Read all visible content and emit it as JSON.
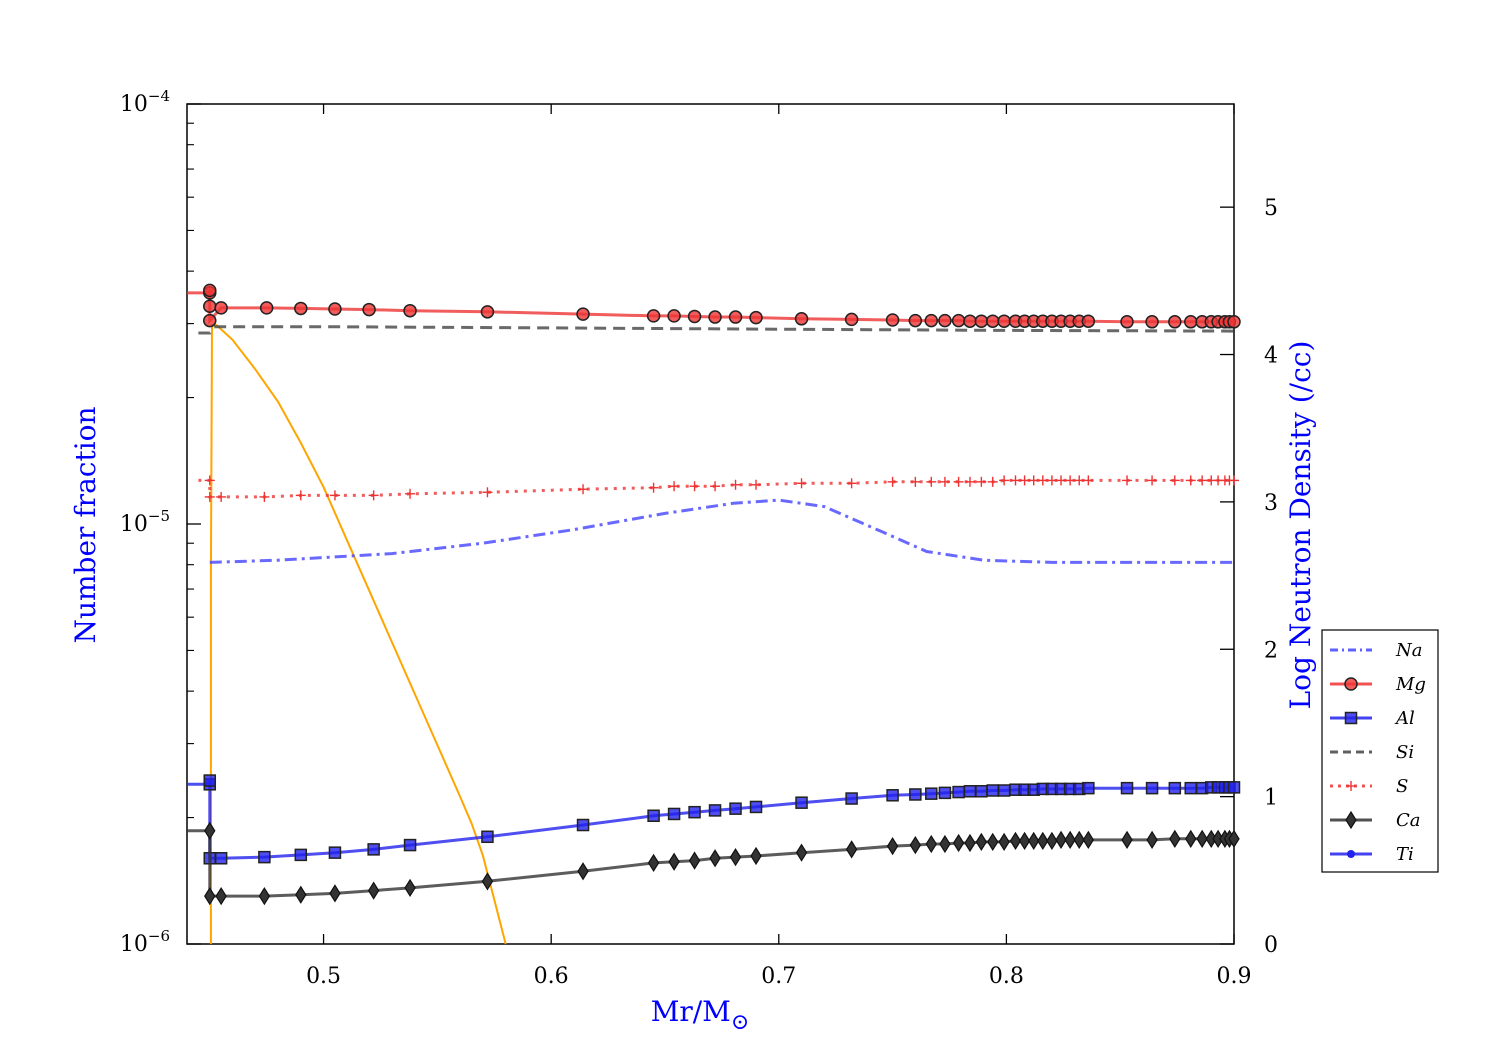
{
  "chart_data": {
    "type": "line",
    "xlabel": "Mr/M",
    "xlabel_symbol": "⊙",
    "ylabel_left": "Number fraction",
    "ylabel_right": "Log Neutron Density (/cc)",
    "x_range": [
      0.44,
      0.9
    ],
    "x_ticks": [
      0.5,
      0.6,
      0.7,
      0.8,
      0.9
    ],
    "x_tick_labels": [
      "0.5",
      "0.6",
      "0.7",
      "0.8",
      "0.9"
    ],
    "y_left_scale": "log",
    "y_left_range": [
      1e-06,
      0.0001
    ],
    "y_left_major_ticks": [
      {
        "value": 1e-06,
        "base": "10",
        "exp": "−6"
      },
      {
        "value": 1e-05,
        "base": "10",
        "exp": "−5"
      },
      {
        "value": 0.0001,
        "base": "10",
        "exp": "−4"
      }
    ],
    "y_right_range": [
      0,
      5.7
    ],
    "y_right_ticks": [
      0,
      1,
      2,
      3,
      4,
      5
    ],
    "y_right_tick_labels": [
      "0",
      "1",
      "2",
      "3",
      "4",
      "5"
    ],
    "legend_position": "right, outside plot (lower)",
    "series": [
      {
        "name": "Na",
        "color": "#4444ff",
        "dash": "dashdot",
        "marker": "none",
        "points": [
          [
            0.45,
            8.1e-06
          ],
          [
            0.48,
            8.2e-06
          ],
          [
            0.53,
            8.5e-06
          ],
          [
            0.57,
            9e-06
          ],
          [
            0.61,
            9.7e-06
          ],
          [
            0.65,
            1.06e-05
          ],
          [
            0.68,
            1.12e-05
          ],
          [
            0.7,
            1.14e-05
          ],
          [
            0.72,
            1.1e-05
          ],
          [
            0.745,
            9.6e-06
          ],
          [
            0.765,
            8.6e-06
          ],
          [
            0.79,
            8.2e-06
          ],
          [
            0.82,
            8.1e-06
          ],
          [
            0.86,
            8.1e-06
          ],
          [
            0.9,
            8.1e-06
          ]
        ]
      },
      {
        "name": "Mg",
        "color": "#ee3333",
        "dash": "solid",
        "marker": "circle",
        "points": [
          [
            0.44,
            3.55e-05
          ],
          [
            0.45,
            3.55e-05
          ],
          [
            0.45,
            3.6e-05
          ],
          [
            0.45,
            3.3e-05
          ],
          [
            0.45,
            3.05e-05
          ],
          [
            0.455,
            3.27e-05
          ],
          [
            0.475,
            3.27e-05
          ],
          [
            0.49,
            3.26e-05
          ],
          [
            0.505,
            3.25e-05
          ],
          [
            0.52,
            3.24e-05
          ],
          [
            0.538,
            3.22e-05
          ],
          [
            0.572,
            3.2e-05
          ],
          [
            0.614,
            3.16e-05
          ],
          [
            0.645,
            3.13e-05
          ],
          [
            0.654,
            3.13e-05
          ],
          [
            0.663,
            3.12e-05
          ],
          [
            0.672,
            3.11e-05
          ],
          [
            0.681,
            3.11e-05
          ],
          [
            0.69,
            3.1e-05
          ],
          [
            0.71,
            3.08e-05
          ],
          [
            0.732,
            3.07e-05
          ],
          [
            0.75,
            3.06e-05
          ],
          [
            0.76,
            3.05e-05
          ],
          [
            0.767,
            3.05e-05
          ],
          [
            0.773,
            3.05e-05
          ],
          [
            0.779,
            3.05e-05
          ],
          [
            0.784,
            3.04e-05
          ],
          [
            0.789,
            3.04e-05
          ],
          [
            0.794,
            3.04e-05
          ],
          [
            0.799,
            3.04e-05
          ],
          [
            0.804,
            3.04e-05
          ],
          [
            0.808,
            3.04e-05
          ],
          [
            0.812,
            3.04e-05
          ],
          [
            0.816,
            3.04e-05
          ],
          [
            0.82,
            3.04e-05
          ],
          [
            0.824,
            3.04e-05
          ],
          [
            0.828,
            3.04e-05
          ],
          [
            0.832,
            3.04e-05
          ],
          [
            0.836,
            3.04e-05
          ],
          [
            0.853,
            3.03e-05
          ],
          [
            0.864,
            3.03e-05
          ],
          [
            0.874,
            3.03e-05
          ],
          [
            0.881,
            3.03e-05
          ],
          [
            0.886,
            3.03e-05
          ],
          [
            0.89,
            3.03e-05
          ],
          [
            0.893,
            3.03e-05
          ],
          [
            0.896,
            3.03e-05
          ],
          [
            0.898,
            3.03e-05
          ],
          [
            0.9,
            3.03e-05
          ]
        ]
      },
      {
        "name": "Al",
        "color": "#2222ee",
        "dash": "solid",
        "marker": "square",
        "points": [
          [
            0.44,
            2.4e-06
          ],
          [
            0.45,
            2.4e-06
          ],
          [
            0.45,
            2.45e-06
          ],
          [
            0.45,
            1.6e-06
          ],
          [
            0.455,
            1.6e-06
          ],
          [
            0.474,
            1.61e-06
          ],
          [
            0.49,
            1.63e-06
          ],
          [
            0.505,
            1.65e-06
          ],
          [
            0.522,
            1.68e-06
          ],
          [
            0.538,
            1.72e-06
          ],
          [
            0.572,
            1.8e-06
          ],
          [
            0.614,
            1.92e-06
          ],
          [
            0.645,
            2.02e-06
          ],
          [
            0.654,
            2.04e-06
          ],
          [
            0.663,
            2.06e-06
          ],
          [
            0.672,
            2.08e-06
          ],
          [
            0.681,
            2.1e-06
          ],
          [
            0.69,
            2.12e-06
          ],
          [
            0.71,
            2.17e-06
          ],
          [
            0.732,
            2.22e-06
          ],
          [
            0.75,
            2.26e-06
          ],
          [
            0.76,
            2.27e-06
          ],
          [
            0.767,
            2.28e-06
          ],
          [
            0.773,
            2.29e-06
          ],
          [
            0.779,
            2.3e-06
          ],
          [
            0.784,
            2.31e-06
          ],
          [
            0.789,
            2.31e-06
          ],
          [
            0.794,
            2.32e-06
          ],
          [
            0.799,
            2.32e-06
          ],
          [
            0.804,
            2.33e-06
          ],
          [
            0.808,
            2.33e-06
          ],
          [
            0.812,
            2.33e-06
          ],
          [
            0.816,
            2.34e-06
          ],
          [
            0.82,
            2.34e-06
          ],
          [
            0.824,
            2.34e-06
          ],
          [
            0.828,
            2.34e-06
          ],
          [
            0.832,
            2.34e-06
          ],
          [
            0.836,
            2.35e-06
          ],
          [
            0.853,
            2.35e-06
          ],
          [
            0.864,
            2.35e-06
          ],
          [
            0.874,
            2.35e-06
          ],
          [
            0.881,
            2.35e-06
          ],
          [
            0.886,
            2.35e-06
          ],
          [
            0.89,
            2.36e-06
          ],
          [
            0.893,
            2.36e-06
          ],
          [
            0.896,
            2.36e-06
          ],
          [
            0.898,
            2.36e-06
          ],
          [
            0.9,
            2.36e-06
          ]
        ]
      },
      {
        "name": "Si",
        "color": "#444444",
        "dash": "dashed",
        "marker": "none",
        "points": [
          [
            0.445,
            2.85e-05
          ],
          [
            0.45,
            2.85e-05
          ],
          [
            0.452,
            2.95e-05
          ],
          [
            0.5,
            2.95e-05
          ],
          [
            0.6,
            2.93e-05
          ],
          [
            0.7,
            2.91e-05
          ],
          [
            0.8,
            2.89e-05
          ],
          [
            0.9,
            2.88e-05
          ]
        ]
      },
      {
        "name": "S",
        "color": "#ee3333",
        "dash": "dotted",
        "marker": "plus",
        "points": [
          [
            0.445,
            1.27e-05
          ],
          [
            0.45,
            1.27e-05
          ],
          [
            0.45,
            1.16e-05
          ],
          [
            0.455,
            1.16e-05
          ],
          [
            0.474,
            1.16e-05
          ],
          [
            0.49,
            1.17e-05
          ],
          [
            0.505,
            1.17e-05
          ],
          [
            0.522,
            1.17e-05
          ],
          [
            0.538,
            1.18e-05
          ],
          [
            0.572,
            1.19e-05
          ],
          [
            0.614,
            1.21e-05
          ],
          [
            0.645,
            1.22e-05
          ],
          [
            0.654,
            1.23e-05
          ],
          [
            0.663,
            1.23e-05
          ],
          [
            0.672,
            1.23e-05
          ],
          [
            0.681,
            1.24e-05
          ],
          [
            0.69,
            1.24e-05
          ],
          [
            0.71,
            1.25e-05
          ],
          [
            0.732,
            1.25e-05
          ],
          [
            0.75,
            1.26e-05
          ],
          [
            0.76,
            1.26e-05
          ],
          [
            0.767,
            1.26e-05
          ],
          [
            0.773,
            1.26e-05
          ],
          [
            0.779,
            1.26e-05
          ],
          [
            0.784,
            1.26e-05
          ],
          [
            0.789,
            1.26e-05
          ],
          [
            0.794,
            1.26e-05
          ],
          [
            0.799,
            1.27e-05
          ],
          [
            0.804,
            1.27e-05
          ],
          [
            0.808,
            1.27e-05
          ],
          [
            0.812,
            1.27e-05
          ],
          [
            0.816,
            1.27e-05
          ],
          [
            0.82,
            1.27e-05
          ],
          [
            0.824,
            1.27e-05
          ],
          [
            0.828,
            1.27e-05
          ],
          [
            0.832,
            1.27e-05
          ],
          [
            0.836,
            1.27e-05
          ],
          [
            0.853,
            1.27e-05
          ],
          [
            0.864,
            1.27e-05
          ],
          [
            0.874,
            1.27e-05
          ],
          [
            0.881,
            1.27e-05
          ],
          [
            0.886,
            1.27e-05
          ],
          [
            0.89,
            1.27e-05
          ],
          [
            0.893,
            1.27e-05
          ],
          [
            0.896,
            1.27e-05
          ],
          [
            0.898,
            1.27e-05
          ],
          [
            0.9,
            1.27e-05
          ]
        ]
      },
      {
        "name": "Ca",
        "color": "#333333",
        "dash": "solid",
        "marker": "diamond",
        "points": [
          [
            0.44,
            1.86e-06
          ],
          [
            0.45,
            1.86e-06
          ],
          [
            0.45,
            1.3e-06
          ],
          [
            0.455,
            1.3e-06
          ],
          [
            0.474,
            1.3e-06
          ],
          [
            0.49,
            1.31e-06
          ],
          [
            0.505,
            1.32e-06
          ],
          [
            0.522,
            1.34e-06
          ],
          [
            0.538,
            1.36e-06
          ],
          [
            0.572,
            1.41e-06
          ],
          [
            0.614,
            1.49e-06
          ],
          [
            0.645,
            1.56e-06
          ],
          [
            0.654,
            1.57e-06
          ],
          [
            0.663,
            1.58e-06
          ],
          [
            0.672,
            1.6e-06
          ],
          [
            0.681,
            1.61e-06
          ],
          [
            0.69,
            1.62e-06
          ],
          [
            0.71,
            1.65e-06
          ],
          [
            0.732,
            1.68e-06
          ],
          [
            0.75,
            1.71e-06
          ],
          [
            0.76,
            1.72e-06
          ],
          [
            0.767,
            1.73e-06
          ],
          [
            0.773,
            1.73e-06
          ],
          [
            0.779,
            1.74e-06
          ],
          [
            0.784,
            1.74e-06
          ],
          [
            0.789,
            1.75e-06
          ],
          [
            0.794,
            1.75e-06
          ],
          [
            0.799,
            1.75e-06
          ],
          [
            0.804,
            1.76e-06
          ],
          [
            0.808,
            1.76e-06
          ],
          [
            0.812,
            1.76e-06
          ],
          [
            0.816,
            1.76e-06
          ],
          [
            0.82,
            1.76e-06
          ],
          [
            0.824,
            1.77e-06
          ],
          [
            0.828,
            1.77e-06
          ],
          [
            0.832,
            1.77e-06
          ],
          [
            0.836,
            1.77e-06
          ],
          [
            0.853,
            1.77e-06
          ],
          [
            0.864,
            1.77e-06
          ],
          [
            0.874,
            1.78e-06
          ],
          [
            0.881,
            1.78e-06
          ],
          [
            0.886,
            1.78e-06
          ],
          [
            0.89,
            1.78e-06
          ],
          [
            0.893,
            1.78e-06
          ],
          [
            0.896,
            1.78e-06
          ],
          [
            0.898,
            1.78e-06
          ],
          [
            0.9,
            1.78e-06
          ]
        ]
      },
      {
        "name": "Ti",
        "color": "#2222ee",
        "dash": "solid",
        "marker": "dot",
        "points": []
      }
    ],
    "neutron_density_series": {
      "axis": "right",
      "color": "#ffa500",
      "legend": false,
      "points": [
        [
          0.4505,
          0
        ],
        [
          0.4505,
          2.5
        ],
        [
          0.451,
          4.2
        ],
        [
          0.453,
          4.2
        ],
        [
          0.46,
          4.1
        ],
        [
          0.47,
          3.9
        ],
        [
          0.48,
          3.68
        ],
        [
          0.49,
          3.4
        ],
        [
          0.5,
          3.1
        ],
        [
          0.51,
          2.75
        ],
        [
          0.52,
          2.4
        ],
        [
          0.53,
          2.05
        ],
        [
          0.54,
          1.7
        ],
        [
          0.55,
          1.35
        ],
        [
          0.56,
          1.0
        ],
        [
          0.565,
          0.82
        ],
        [
          0.57,
          0.6
        ],
        [
          0.575,
          0.3
        ],
        [
          0.58,
          0
        ]
      ]
    }
  }
}
